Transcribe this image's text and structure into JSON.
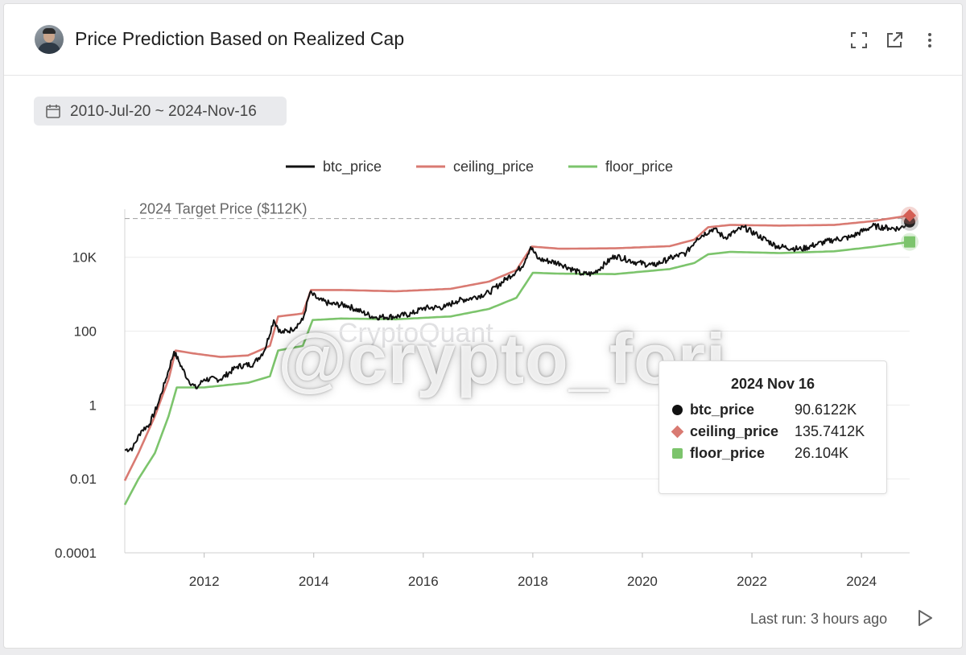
{
  "header": {
    "title": "Price Prediction Based on Realized Cap",
    "icons": [
      "expand-icon",
      "external-link-icon",
      "more-vertical-icon"
    ]
  },
  "date_range": "2010-Jul-20 ~ 2024-Nov-16",
  "chart_data": {
    "type": "line",
    "title": "",
    "xlabel": "",
    "ylabel": "",
    "y_scale": "log",
    "ylim": [
      0.0001,
      200000
    ],
    "xlim": [
      2010.55,
      2024.88
    ],
    "yticks": [
      {
        "value": 10000,
        "label": "10K"
      },
      {
        "value": 100,
        "label": "100"
      },
      {
        "value": 1,
        "label": "1"
      },
      {
        "value": 0.01,
        "label": "0.01"
      },
      {
        "value": 0.0001,
        "label": "0.0001"
      }
    ],
    "xticks": [
      {
        "value": 2012,
        "label": "2012"
      },
      {
        "value": 2014,
        "label": "2014"
      },
      {
        "value": 2016,
        "label": "2016"
      },
      {
        "value": 2018,
        "label": "2018"
      },
      {
        "value": 2020,
        "label": "2020"
      },
      {
        "value": 2022,
        "label": "2022"
      },
      {
        "value": 2024,
        "label": "2024"
      }
    ],
    "grid": true,
    "legend_position": "top-center",
    "reference_line": {
      "value": 112000,
      "label": "2024 Target Price ($112K)"
    },
    "series": [
      {
        "name": "btc_price",
        "color": "#111111",
        "points": [
          [
            2010.55,
            0.06
          ],
          [
            2010.7,
            0.07
          ],
          [
            2010.85,
            0.2
          ],
          [
            2011.0,
            0.3
          ],
          [
            2011.15,
            1.0
          ],
          [
            2011.3,
            5
          ],
          [
            2011.45,
            28
          ],
          [
            2011.55,
            14
          ],
          [
            2011.7,
            5
          ],
          [
            2011.85,
            2.8
          ],
          [
            2012.0,
            5
          ],
          [
            2012.3,
            5
          ],
          [
            2012.6,
            11
          ],
          [
            2012.9,
            13
          ],
          [
            2013.1,
            30
          ],
          [
            2013.27,
            200
          ],
          [
            2013.4,
            90
          ],
          [
            2013.6,
            110
          ],
          [
            2013.8,
            200
          ],
          [
            2013.93,
            1100
          ],
          [
            2014.1,
            700
          ],
          [
            2014.3,
            550
          ],
          [
            2014.6,
            500
          ],
          [
            2014.9,
            320
          ],
          [
            2015.1,
            240
          ],
          [
            2015.5,
            250
          ],
          [
            2015.8,
            300
          ],
          [
            2016.0,
            420
          ],
          [
            2016.4,
            450
          ],
          [
            2016.6,
            650
          ],
          [
            2016.9,
            800
          ],
          [
            2017.2,
            1100
          ],
          [
            2017.5,
            2500
          ],
          [
            2017.8,
            5500
          ],
          [
            2017.96,
            19000
          ],
          [
            2018.1,
            9000
          ],
          [
            2018.5,
            6800
          ],
          [
            2018.9,
            3500
          ],
          [
            2019.1,
            3600
          ],
          [
            2019.5,
            11000
          ],
          [
            2019.9,
            7200
          ],
          [
            2020.2,
            6000
          ],
          [
            2020.5,
            9300
          ],
          [
            2020.8,
            13000
          ],
          [
            2021.0,
            33000
          ],
          [
            2021.3,
            60000
          ],
          [
            2021.5,
            34000
          ],
          [
            2021.85,
            65000
          ],
          [
            2022.1,
            40000
          ],
          [
            2022.45,
            20000
          ],
          [
            2022.9,
            16500
          ],
          [
            2023.2,
            23000
          ],
          [
            2023.5,
            30000
          ],
          [
            2023.8,
            35000
          ],
          [
            2024.2,
            70000
          ],
          [
            2024.5,
            62000
          ],
          [
            2024.7,
            60000
          ],
          [
            2024.88,
            90612.2
          ]
        ]
      },
      {
        "name": "ceiling_price",
        "color": "#d97a72",
        "points": [
          [
            2010.55,
            0.009
          ],
          [
            2010.8,
            0.05
          ],
          [
            2011.1,
            0.5
          ],
          [
            2011.35,
            5
          ],
          [
            2011.48,
            30
          ],
          [
            2011.8,
            25
          ],
          [
            2012.3,
            20
          ],
          [
            2012.8,
            22
          ],
          [
            2013.2,
            40
          ],
          [
            2013.35,
            250
          ],
          [
            2013.8,
            300
          ],
          [
            2013.95,
            1300
          ],
          [
            2014.5,
            1300
          ],
          [
            2015.5,
            1200
          ],
          [
            2016.5,
            1400
          ],
          [
            2017.2,
            2200
          ],
          [
            2017.7,
            4500
          ],
          [
            2017.98,
            19500
          ],
          [
            2018.5,
            17000
          ],
          [
            2019.5,
            17500
          ],
          [
            2020.5,
            20000
          ],
          [
            2020.95,
            30000
          ],
          [
            2021.2,
            65000
          ],
          [
            2021.6,
            75000
          ],
          [
            2022.5,
            72000
          ],
          [
            2023.5,
            75000
          ],
          [
            2024.2,
            95000
          ],
          [
            2024.88,
            135741.2
          ]
        ]
      },
      {
        "name": "floor_price",
        "color": "#7cc46c",
        "points": [
          [
            2010.55,
            0.002
          ],
          [
            2010.8,
            0.01
          ],
          [
            2011.1,
            0.05
          ],
          [
            2011.35,
            0.5
          ],
          [
            2011.5,
            3
          ],
          [
            2012.0,
            3
          ],
          [
            2012.8,
            4
          ],
          [
            2013.2,
            6
          ],
          [
            2013.35,
            30
          ],
          [
            2013.8,
            40
          ],
          [
            2013.98,
            200
          ],
          [
            2014.5,
            220
          ],
          [
            2015.5,
            210
          ],
          [
            2016.5,
            250
          ],
          [
            2017.2,
            400
          ],
          [
            2017.7,
            800
          ],
          [
            2018.0,
            3800
          ],
          [
            2018.5,
            3600
          ],
          [
            2019.5,
            3500
          ],
          [
            2020.5,
            4800
          ],
          [
            2020.95,
            7000
          ],
          [
            2021.2,
            12000
          ],
          [
            2021.6,
            14000
          ],
          [
            2022.5,
            13000
          ],
          [
            2023.5,
            14500
          ],
          [
            2024.2,
            19000
          ],
          [
            2024.88,
            26104
          ]
        ]
      }
    ]
  },
  "tooltip": {
    "date": "2024 Nov 16",
    "rows": [
      {
        "name": "btc_price",
        "value": "90.6122K",
        "color": "#111111",
        "marker": "circle"
      },
      {
        "name": "ceiling_price",
        "value": "135.7412K",
        "color": "#d97a72",
        "marker": "diamond"
      },
      {
        "name": "floor_price",
        "value": "26.104K",
        "color": "#7cc46c",
        "marker": "square"
      }
    ]
  },
  "watermark": "@crypto_fori",
  "faint_watermark": "CryptoQuant",
  "footer": {
    "last_run": "Last run: 3 hours ago"
  }
}
